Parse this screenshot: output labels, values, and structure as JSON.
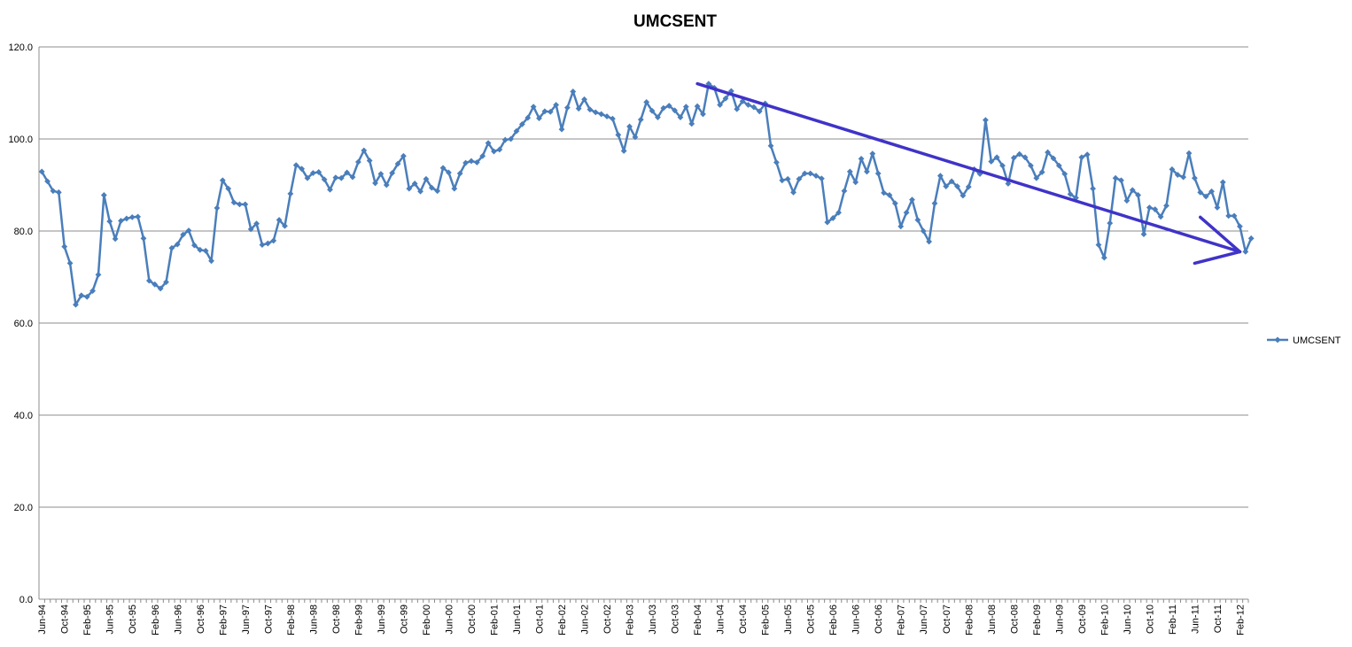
{
  "chart_data": {
    "type": "line",
    "title": "UMCSENT",
    "ylim": [
      0,
      120
    ],
    "yticks": [
      "0.0",
      "20.0",
      "40.0",
      "60.0",
      "80.0",
      "100.0",
      "120.0"
    ],
    "grid": "horizontal",
    "legend_placement": "right",
    "x_start": "Jun-94",
    "x_end": "Mar-12",
    "xtick_labels": [
      "Jun-94",
      "Oct-94",
      "Feb-95",
      "Jun-95",
      "Oct-95",
      "Feb-96",
      "Jun-96",
      "Oct-96",
      "Feb-97",
      "Jun-97",
      "Oct-97",
      "Feb-98",
      "Jun-98",
      "Oct-98",
      "Feb-99",
      "Jun-99",
      "Oct-99",
      "Feb-00",
      "Jun-00",
      "Oct-00",
      "Feb-01",
      "Jun-01",
      "Oct-01",
      "Feb-02",
      "Jun-02",
      "Oct-02",
      "Feb-03",
      "Jun-03",
      "Oct-03",
      "Feb-04",
      "Jun-04",
      "Oct-04",
      "Feb-05",
      "Jun-05",
      "Oct-05",
      "Feb-06",
      "Jun-06",
      "Oct-06",
      "Feb-07",
      "Jun-07",
      "Oct-07",
      "Feb-08",
      "Jun-08",
      "Oct-08",
      "Feb-09",
      "Jun-09",
      "Oct-09",
      "Feb-10",
      "Jun-10",
      "Oct-10",
      "Feb-11",
      "Jun-11",
      "Oct-11",
      "Feb-12"
    ],
    "series": [
      {
        "name": "UMCSENT",
        "color": "#4a7ebb",
        "values": [
          92.9,
          90.8,
          88.7,
          88.4,
          76.6,
          73.0,
          64.0,
          66.0,
          65.7,
          67.0,
          70.5,
          87.8,
          82.1,
          78.3,
          82.2,
          82.7,
          83.0,
          83.1,
          78.4,
          69.2,
          68.4,
          67.5,
          68.9,
          76.3,
          77.1,
          79.2,
          80.1,
          76.9,
          75.9,
          75.7,
          73.5,
          85.0,
          91.0,
          89.2,
          86.2,
          85.8,
          85.8,
          80.4,
          81.6,
          77.0,
          77.3,
          77.9,
          82.4,
          81.1,
          88.1,
          94.3,
          93.5,
          91.5,
          92.6,
          92.8,
          91.2,
          89.0,
          91.6,
          91.5,
          92.7,
          91.7,
          95.0,
          97.5,
          95.3,
          90.4,
          92.4,
          90.0,
          92.6,
          94.6,
          96.3,
          89.2,
          90.3,
          88.6,
          91.3,
          89.4,
          88.7,
          93.7,
          92.7,
          89.2,
          92.5,
          94.8,
          95.2,
          94.9,
          96.3,
          99.1,
          97.3,
          97.7,
          99.8,
          100.0,
          101.7,
          103.2,
          104.6,
          107.0,
          104.5,
          106.0,
          105.9,
          107.4,
          102.1,
          106.8,
          110.3,
          106.6,
          108.6,
          106.4,
          105.8,
          105.4,
          104.9,
          104.4,
          100.9,
          97.4,
          102.7,
          100.4,
          104.2,
          108.0,
          106.1,
          104.7,
          106.7,
          107.2,
          106.2,
          104.7,
          107.0,
          103.3,
          107.1,
          105.4,
          112.0,
          111.1,
          107.4,
          108.8,
          110.4,
          106.5,
          108.2,
          107.4,
          106.9,
          106.0,
          107.7,
          98.5,
          94.9,
          91.0,
          91.3,
          88.4,
          91.3,
          92.5,
          92.5,
          92.0,
          91.4,
          81.9,
          82.8,
          84.0,
          88.7,
          92.9,
          90.6,
          95.7,
          92.9,
          96.8,
          92.5,
          88.3,
          87.8,
          86.0,
          81.0,
          84.0,
          86.8,
          82.4,
          80.0,
          77.7,
          86.0,
          92.0,
          89.7,
          90.8,
          89.7,
          87.7,
          89.6,
          93.4,
          92.4,
          104.1,
          95.1,
          96.0,
          94.2,
          90.3,
          95.9,
          96.7,
          96.0,
          94.2,
          91.5,
          92.8,
          97.1,
          95.8,
          94.2,
          92.4,
          88.0,
          87.2,
          96.0,
          96.6,
          89.2,
          77.0,
          74.2,
          81.7,
          91.5,
          91.0,
          86.6,
          88.9,
          87.8,
          79.3,
          85.1,
          84.7,
          83.1,
          85.5,
          93.4,
          92.2,
          91.7,
          96.9,
          91.5,
          88.4,
          87.5,
          88.6,
          85.1,
          90.6,
          83.3,
          83.3,
          81.0,
          75.5,
          78.4
        ]
      }
    ],
    "annotations": [
      {
        "type": "arrow",
        "color": "#3f33c8",
        "from": {
          "x": "Feb-04",
          "y": 112
        },
        "to": {
          "x": "Feb-12",
          "y": 75.5
        }
      },
      {
        "type": "arrow",
        "color": "#3f33c8",
        "from": {
          "x": "Jun-11",
          "y": 73
        },
        "to": {
          "x": "Feb-12",
          "y": 75.5
        }
      },
      {
        "type": "arrow",
        "color": "#3f33c8",
        "from": {
          "x": "Jul-11",
          "y": 83
        },
        "to": {
          "x": "Feb-12",
          "y": 75.5
        }
      }
    ]
  }
}
